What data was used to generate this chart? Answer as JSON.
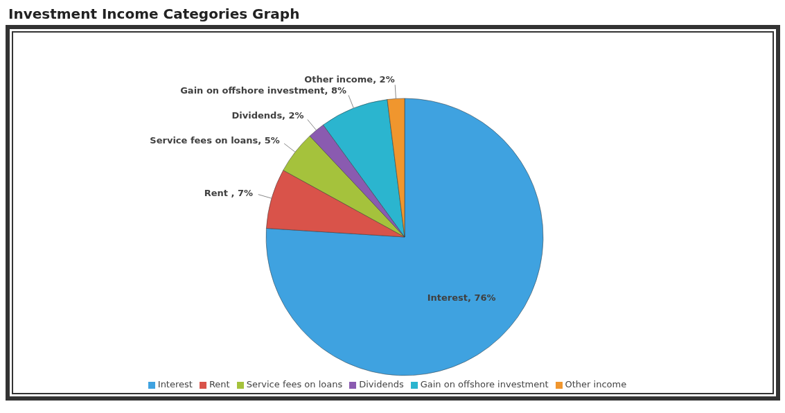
{
  "chart_data": {
    "type": "pie",
    "title": "Investment Income Categories Graph",
    "categories": [
      "Interest",
      "Rent",
      "Service fees on loans",
      "Dividends",
      "Gain on offshore investment",
      "Other income"
    ],
    "values": [
      76,
      7,
      5,
      2,
      8,
      2
    ],
    "colors": [
      "#3fa2e0",
      "#d9534a",
      "#a5c23c",
      "#8a5bb0",
      "#2bb5cf",
      "#f0962e"
    ],
    "value_labels": [
      "Interest, 76%",
      "Rent , 7%",
      "Service fees on loans, 5%",
      "Dividends, 2%",
      "Gain on offshore investment, 8%",
      "Other income, 2%"
    ],
    "legend": "bottom"
  }
}
